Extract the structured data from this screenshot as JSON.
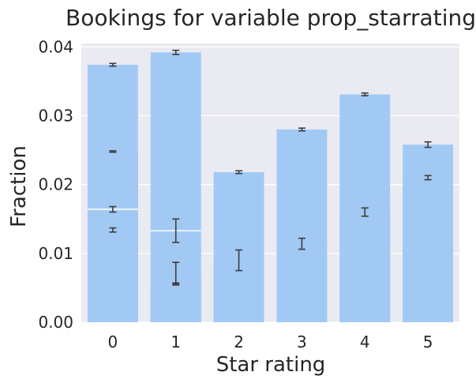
{
  "chart_data": {
    "type": "bar",
    "title": "Bookings for variable prop_starrating",
    "xlabel": "Star rating",
    "ylabel": "Fraction",
    "categories": [
      "0",
      "1",
      "2",
      "3",
      "4",
      "5"
    ],
    "ylim": [
      0,
      0.0405
    ],
    "yticks": [
      0.0,
      0.01,
      0.02,
      0.03,
      0.04
    ],
    "ytick_labels": [
      "0.00",
      "0.01",
      "0.02",
      "0.03",
      "0.04"
    ],
    "grid": true,
    "legend": "none",
    "colors": {
      "bar": "#a1c9f4",
      "background": "#eaeaf2",
      "grid": "#ffffff",
      "errorbar": "#3d3d3d"
    },
    "series": [
      {
        "values": [
          0.0374,
          0.0392,
          0.0218,
          0.028,
          0.0331,
          0.0258
        ],
        "errors": [
          0.0002,
          0.0003,
          0.0002,
          0.0002,
          0.0002,
          0.0004
        ]
      },
      {
        "values": [
          0.0248,
          0.0133,
          0.009,
          0.0114,
          0.016,
          0.021
        ],
        "errors": [
          0.0001,
          0.0017,
          0.0015,
          0.0008,
          0.0006,
          0.0003
        ]
      },
      {
        "values": [
          0.0164,
          0.0072,
          null,
          null,
          null,
          null
        ],
        "errors": [
          0.0004,
          0.0015,
          null,
          null,
          null,
          null
        ]
      },
      {
        "values": [
          0.0134,
          0.0055,
          null,
          null,
          null,
          null
        ],
        "errors": [
          0.0003,
          0.0001,
          null,
          null,
          null,
          null
        ]
      }
    ],
    "bar_outlines": [
      {
        "category": "0",
        "value": 0.0164
      },
      {
        "category": "1",
        "value": 0.0133
      }
    ]
  }
}
